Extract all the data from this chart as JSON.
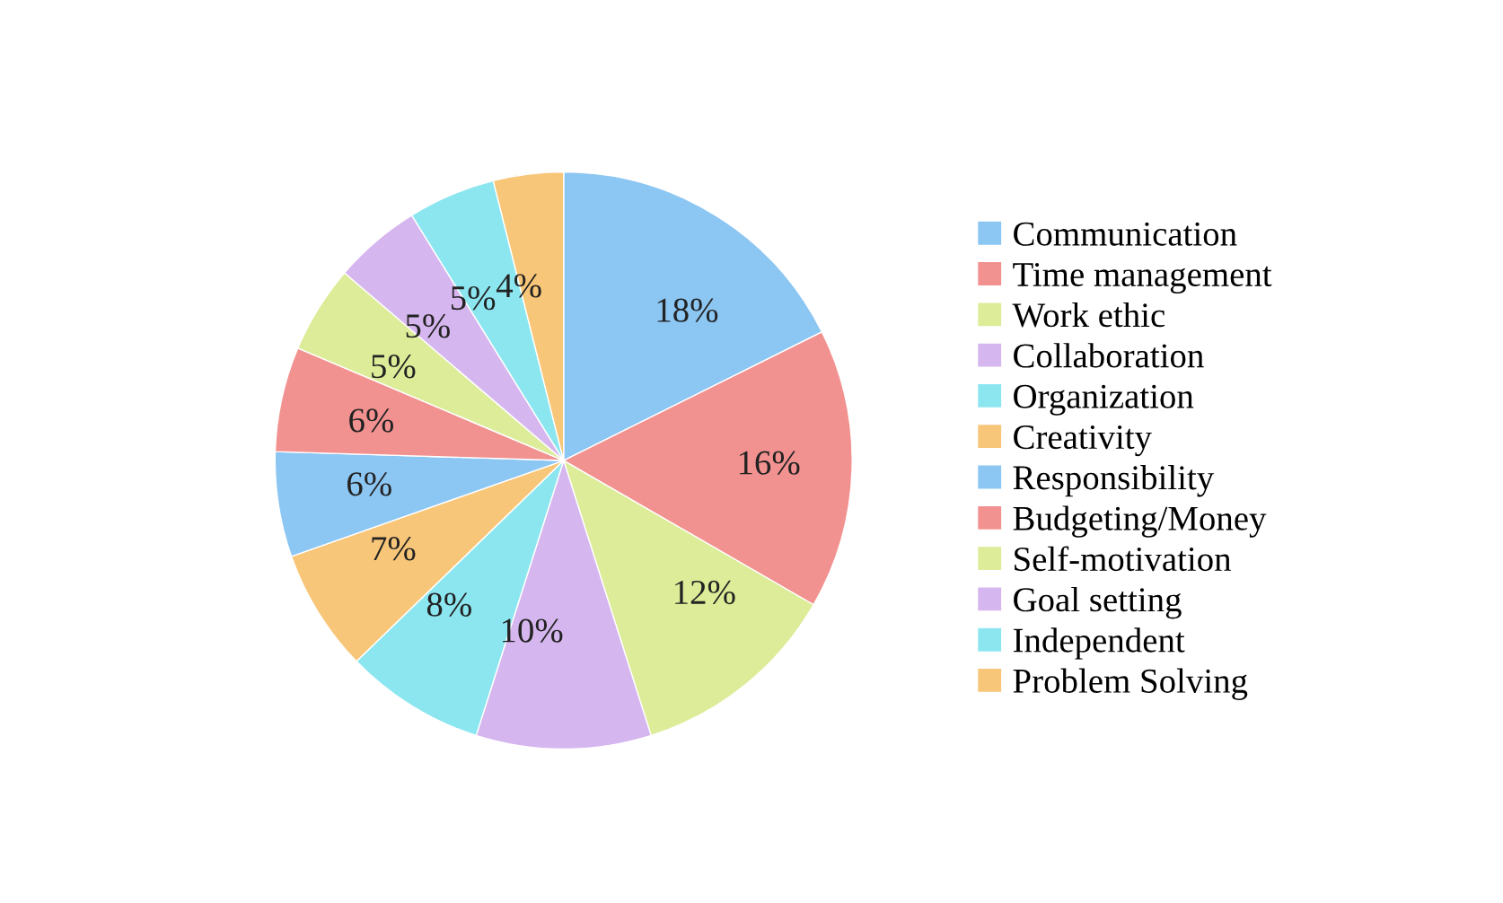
{
  "chart_data": {
    "type": "pie",
    "categories": [
      "Communication",
      "Time management",
      "Work ethic",
      "Collaboration",
      "Organization",
      "Creativity",
      "Responsibility",
      "Budgeting/Money",
      "Self-motivation",
      "Goal setting",
      "Independent",
      "Problem Solving"
    ],
    "values": [
      18,
      16,
      12,
      10,
      8,
      7,
      6,
      6,
      5,
      5,
      5,
      4
    ],
    "colors": [
      "#8cc6f2",
      "#f29290",
      "#dcec98",
      "#d6b6ee",
      "#8ce6f0",
      "#f8c678",
      "#8cc6f2",
      "#f29290",
      "#dcec98",
      "#d6b6ee",
      "#8ce6f0",
      "#f8c678"
    ],
    "value_labels": [
      "18%",
      "16%",
      "12%",
      "10%",
      "8%",
      "7%",
      "6%",
      "6%",
      "5%",
      "5%",
      "5%",
      "4%"
    ],
    "legend": "right"
  }
}
